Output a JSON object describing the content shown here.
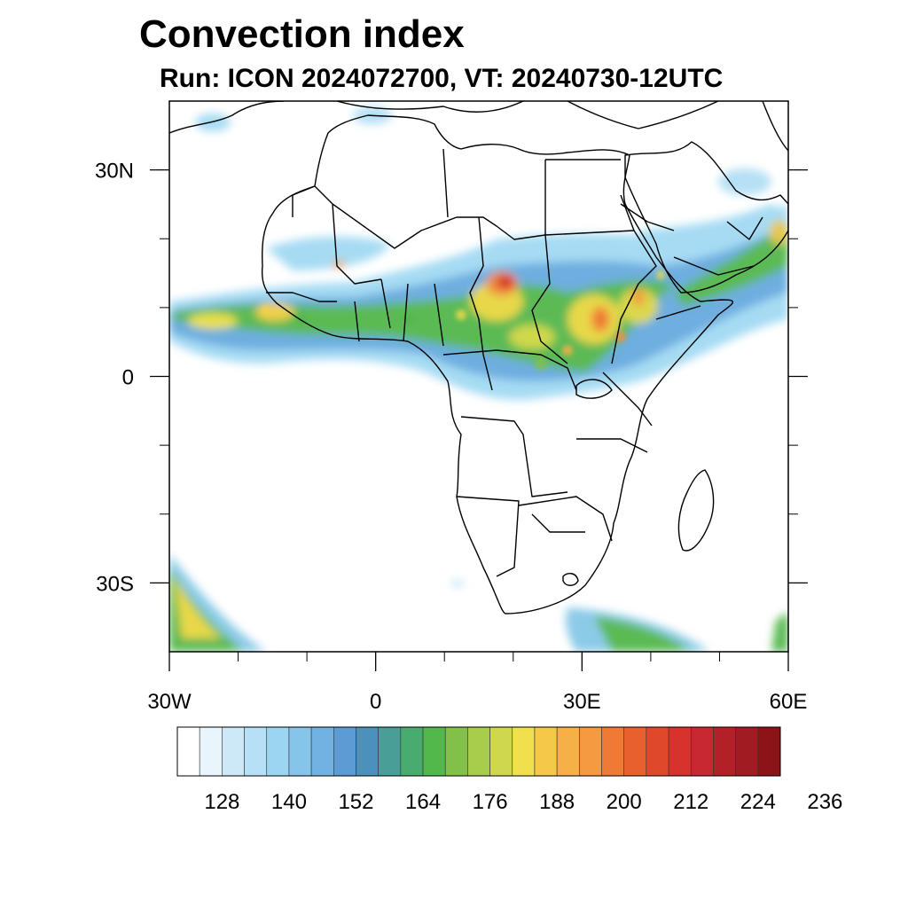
{
  "title": "Convection index",
  "subtitle": "Run: ICON 2024072700,  VT: 20240730-12UTC",
  "map": {
    "lon_range": [
      -30,
      60
    ],
    "lat_range": [
      -40,
      40
    ],
    "lon_ticks": [
      {
        "value": -30,
        "label": "30W"
      },
      {
        "value": 0,
        "label": "0"
      },
      {
        "value": 30,
        "label": "30E"
      },
      {
        "value": 60,
        "label": "60E"
      }
    ],
    "lat_ticks": [
      {
        "value": 30,
        "label": "30N"
      },
      {
        "value": 0,
        "label": "0"
      },
      {
        "value": -30,
        "label": "30S"
      }
    ],
    "minor_lon": [
      -20,
      -10,
      10,
      20,
      40,
      50
    ],
    "minor_lat": [
      20,
      10,
      -10,
      -20
    ]
  },
  "colorbar": {
    "colors": [
      "#ffffff",
      "#e8f5fc",
      "#cde9f7",
      "#b5e0f5",
      "#9ad6f2",
      "#86c4ea",
      "#72b2e2",
      "#5c9bd4",
      "#4c91bc",
      "#4a9e98",
      "#4aab6e",
      "#52b84c",
      "#82c04a",
      "#a8cc4c",
      "#cfd84c",
      "#f0e04c",
      "#f5c84a",
      "#f5b048",
      "#f59a40",
      "#ef7a36",
      "#e8602e",
      "#e0482c",
      "#d8322c",
      "#c82830",
      "#b42028",
      "#a01c22",
      "#8c1418"
    ],
    "tick_labels": [
      "128",
      "140",
      "152",
      "164",
      "176",
      "188",
      "200",
      "212",
      "224",
      "236"
    ],
    "tick_values": [
      128,
      140,
      152,
      164,
      176,
      188,
      200,
      212,
      224,
      236
    ]
  }
}
